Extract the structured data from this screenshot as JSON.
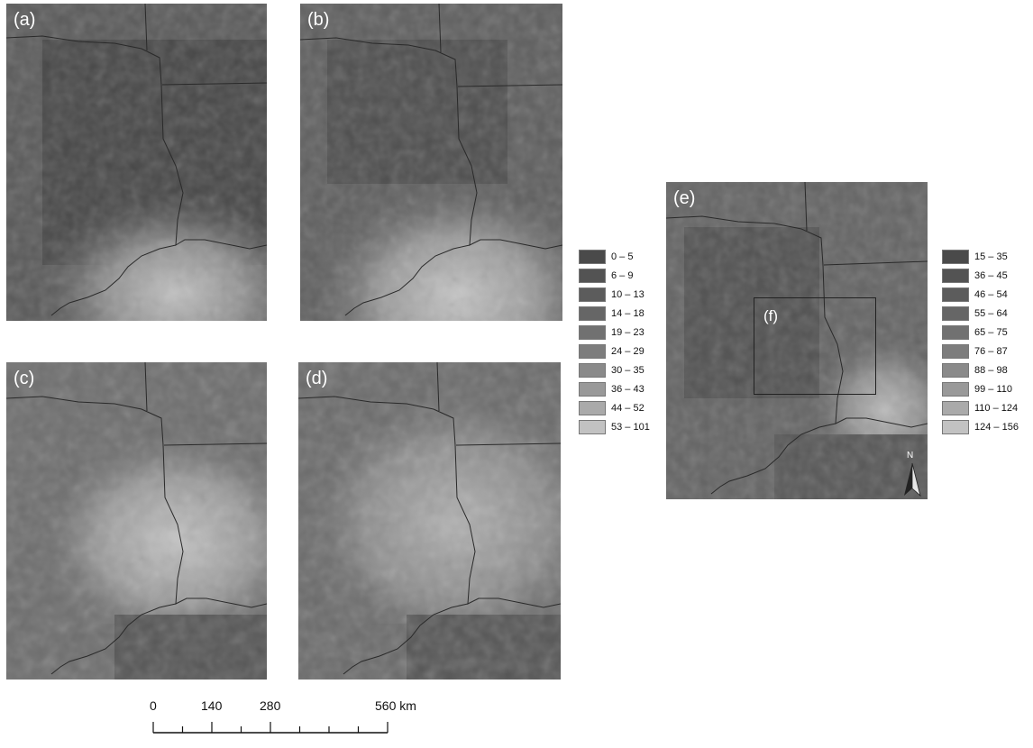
{
  "panels": {
    "a": {
      "label": "(a)"
    },
    "b": {
      "label": "(b)"
    },
    "c": {
      "label": "(c)"
    },
    "d": {
      "label": "(d)"
    },
    "e": {
      "label": "(e)"
    }
  },
  "inset": {
    "label": "(f)"
  },
  "legend_left": {
    "classes": [
      {
        "range": "0 – 5",
        "color": "#4a4a4a"
      },
      {
        "range": "6 – 9",
        "color": "#535353"
      },
      {
        "range": "10 – 13",
        "color": "#5c5c5c"
      },
      {
        "range": "14 – 18",
        "color": "#666666"
      },
      {
        "range": "19 – 23",
        "color": "#717171"
      },
      {
        "range": "24 – 29",
        "color": "#7d7d7d"
      },
      {
        "range": "30 – 35",
        "color": "#8a8a8a"
      },
      {
        "range": "36 – 43",
        "color": "#999999"
      },
      {
        "range": "44 – 52",
        "color": "#aaaaaa"
      },
      {
        "range": "53 – 101",
        "color": "#c2c2c2"
      }
    ]
  },
  "legend_right": {
    "classes": [
      {
        "range": "15 – 35",
        "color": "#4a4a4a"
      },
      {
        "range": "36 – 45",
        "color": "#535353"
      },
      {
        "range": "46 – 54",
        "color": "#5c5c5c"
      },
      {
        "range": "55 – 64",
        "color": "#666666"
      },
      {
        "range": "65 – 75",
        "color": "#717171"
      },
      {
        "range": "76 – 87",
        "color": "#7d7d7d"
      },
      {
        "range": "88 – 98",
        "color": "#8a8a8a"
      },
      {
        "range": "99 – 110",
        "color": "#999999"
      },
      {
        "range": "110 – 124",
        "color": "#aaaaaa"
      },
      {
        "range": "124 – 156",
        "color": "#c2c2c2"
      }
    ]
  },
  "north_arrow": {
    "label": "N",
    "icon": "north-arrow-icon"
  },
  "scale_bar": {
    "ticks": [
      {
        "label": "0",
        "km": 0
      },
      {
        "label": "140",
        "km": 140
      },
      {
        "label": "280",
        "km": 280
      },
      {
        "label": "560 km",
        "km": 560
      }
    ],
    "max_km": 560,
    "minor_ticks_km": [
      0,
      70,
      140,
      210,
      280,
      350,
      420,
      490,
      560
    ]
  },
  "colors": {
    "dark_region": "#4d4d4d",
    "mid_region": "#6e6e6e",
    "light_region": "#b5b5b5",
    "boundary_line": "#2a2a2a"
  }
}
